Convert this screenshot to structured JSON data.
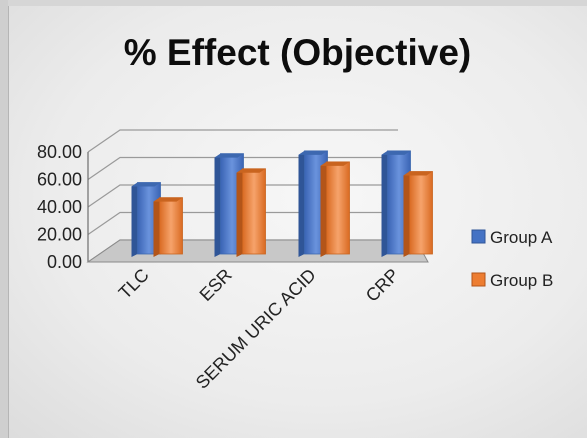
{
  "chart_data": {
    "type": "bar",
    "title": "% Effect (Objective)",
    "xlabel": "",
    "ylabel": "",
    "categories": [
      "TLC",
      "ESR",
      "SERUM URIC ACID",
      "CRP"
    ],
    "series": [
      {
        "name": "Group A",
        "values": [
          52,
          73,
          75,
          75
        ]
      },
      {
        "name": "Group B",
        "values": [
          41,
          62,
          67,
          60
        ]
      }
    ],
    "ylim": [
      0,
      80
    ],
    "yticks": [
      "0.00",
      "20.00",
      "40.00",
      "60.00",
      "80.00"
    ],
    "grid": true,
    "legend": "right",
    "colors": {
      "Group A": "#4472c4",
      "Group B": "#ed7d31"
    }
  }
}
